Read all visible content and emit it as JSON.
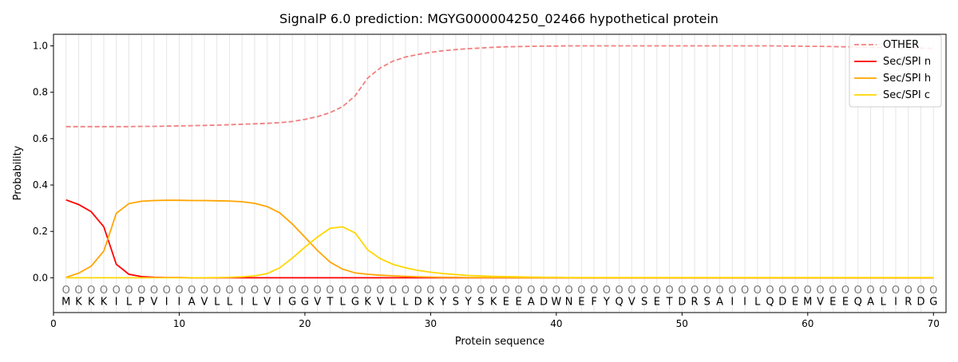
{
  "chart_data": {
    "type": "line",
    "title": "SignalP 6.0 prediction: MGYG000004250_02466 hypothetical protein",
    "xlabel": "Protein sequence",
    "ylabel": "Probability",
    "xlim": [
      0,
      71
    ],
    "ylim": [
      -0.15,
      1.05
    ],
    "xticks": [
      0,
      10,
      20,
      30,
      40,
      50,
      60,
      70
    ],
    "yticks": [
      "0.0",
      "0.2",
      "0.4",
      "0.6",
      "0.8",
      "1.0"
    ],
    "grid": "vertical lines at each residue position",
    "legend_position": "top-right",
    "sequence": [
      "M",
      "K",
      "K",
      "K",
      "I",
      "L",
      "P",
      "V",
      "I",
      "I",
      "A",
      "V",
      "L",
      "L",
      "I",
      "L",
      "V",
      "I",
      "G",
      "G",
      "V",
      "T",
      "L",
      "G",
      "K",
      "V",
      "L",
      "L",
      "D",
      "K",
      "Y",
      "S",
      "Y",
      "S",
      "K",
      "E",
      "E",
      "A",
      "D",
      "W",
      "N",
      "E",
      "F",
      "Y",
      "Q",
      "V",
      "S",
      "E",
      "T",
      "D",
      "R",
      "S",
      "A",
      "I",
      "I",
      "L",
      "Q",
      "D",
      "E",
      "M",
      "V",
      "E",
      "E",
      "Q",
      "A",
      "L",
      "I",
      "R",
      "D",
      "G"
    ],
    "marker_label": "O",
    "x": [
      1,
      2,
      3,
      4,
      5,
      6,
      7,
      8,
      9,
      10,
      11,
      12,
      13,
      14,
      15,
      16,
      17,
      18,
      19,
      20,
      21,
      22,
      23,
      24,
      25,
      26,
      27,
      28,
      29,
      30,
      31,
      32,
      33,
      34,
      35,
      36,
      37,
      38,
      39,
      40,
      41,
      42,
      43,
      44,
      45,
      46,
      47,
      48,
      49,
      50,
      51,
      52,
      53,
      54,
      55,
      56,
      57,
      58,
      59,
      60,
      61,
      62,
      63,
      64,
      65,
      66,
      67,
      68,
      69,
      70
    ],
    "series": [
      {
        "name": "OTHER",
        "color": "#f08080",
        "dash": true,
        "values": [
          0.652,
          0.652,
          0.652,
          0.652,
          0.652,
          0.652,
          0.653,
          0.653,
          0.654,
          0.655,
          0.656,
          0.657,
          0.658,
          0.66,
          0.662,
          0.664,
          0.666,
          0.669,
          0.674,
          0.683,
          0.695,
          0.712,
          0.738,
          0.785,
          0.862,
          0.905,
          0.934,
          0.952,
          0.963,
          0.972,
          0.979,
          0.984,
          0.988,
          0.991,
          0.994,
          0.996,
          0.997,
          0.998,
          0.999,
          0.999,
          1.0,
          1.0,
          1.0,
          1.0,
          1.0,
          1.0,
          1.0,
          1.0,
          1.0,
          1.0,
          1.0,
          1.0,
          1.0,
          1.0,
          1.0,
          1.0,
          1.0,
          0.999,
          0.999,
          0.998,
          0.998,
          0.997,
          0.996,
          0.995,
          0.994,
          0.993,
          0.992,
          0.992,
          0.99,
          0.989
        ]
      },
      {
        "name": "Sec/SPI n",
        "color": "#ff0000",
        "dash": false,
        "values": [
          0.336,
          0.316,
          0.285,
          0.22,
          0.058,
          0.015,
          0.005,
          0.002,
          0.001,
          0.001,
          0.0,
          0.0,
          0.0,
          0.0,
          0.0,
          0.0,
          0.0,
          0.0,
          0.0,
          0.0,
          0.0,
          0.0,
          0.0,
          0.0,
          0.0,
          0.0,
          0.0,
          0.0,
          0.0,
          0.0,
          0.0,
          0.0,
          0.0,
          0.0,
          0.0,
          0.0,
          0.0,
          0.0,
          0.0,
          0.0,
          0.0,
          0.0,
          0.0,
          0.0,
          0.0,
          0.0,
          0.0,
          0.0,
          0.0,
          0.0,
          0.0,
          0.0,
          0.0,
          0.0,
          0.0,
          0.0,
          0.0,
          0.0,
          0.0,
          0.0,
          0.0,
          0.0,
          0.0,
          0.0,
          0.0,
          0.0,
          0.0,
          0.0,
          0.0,
          0.0
        ]
      },
      {
        "name": "Sec/SPI h",
        "color": "#ffa500",
        "dash": false,
        "values": [
          0.002,
          0.02,
          0.05,
          0.115,
          0.278,
          0.32,
          0.33,
          0.333,
          0.334,
          0.334,
          0.333,
          0.333,
          0.332,
          0.331,
          0.328,
          0.321,
          0.307,
          0.28,
          0.232,
          0.175,
          0.118,
          0.068,
          0.037,
          0.021,
          0.015,
          0.011,
          0.008,
          0.006,
          0.004,
          0.003,
          0.002,
          0.002,
          0.001,
          0.001,
          0.001,
          0.001,
          0.0,
          0.0,
          0.0,
          0.0,
          0.0,
          0.0,
          0.0,
          0.0,
          0.0,
          0.0,
          0.0,
          0.0,
          0.0,
          0.0,
          0.0,
          0.0,
          0.0,
          0.0,
          0.0,
          0.0,
          0.0,
          0.0,
          0.0,
          0.0,
          0.0,
          0.0,
          0.0,
          0.0,
          0.0,
          0.0,
          0.0,
          0.0,
          0.0,
          0.0
        ]
      },
      {
        "name": "Sec/SPI c",
        "color": "#ffd700",
        "dash": false,
        "values": [
          0.0,
          0.0,
          0.0,
          0.0,
          0.0,
          0.0,
          0.0,
          0.0,
          0.0,
          0.0,
          0.0,
          0.0,
          0.001,
          0.002,
          0.004,
          0.008,
          0.018,
          0.043,
          0.085,
          0.132,
          0.176,
          0.213,
          0.22,
          0.193,
          0.12,
          0.082,
          0.058,
          0.043,
          0.032,
          0.024,
          0.018,
          0.014,
          0.01,
          0.008,
          0.006,
          0.005,
          0.004,
          0.003,
          0.002,
          0.002,
          0.001,
          0.001,
          0.001,
          0.001,
          0.001,
          0.001,
          0.001,
          0.001,
          0.001,
          0.001,
          0.001,
          0.001,
          0.001,
          0.001,
          0.001,
          0.001,
          0.001,
          0.001,
          0.001,
          0.001,
          0.001,
          0.001,
          0.001,
          0.001,
          0.001,
          0.001,
          0.001,
          0.001,
          0.001,
          0.001
        ]
      }
    ]
  }
}
